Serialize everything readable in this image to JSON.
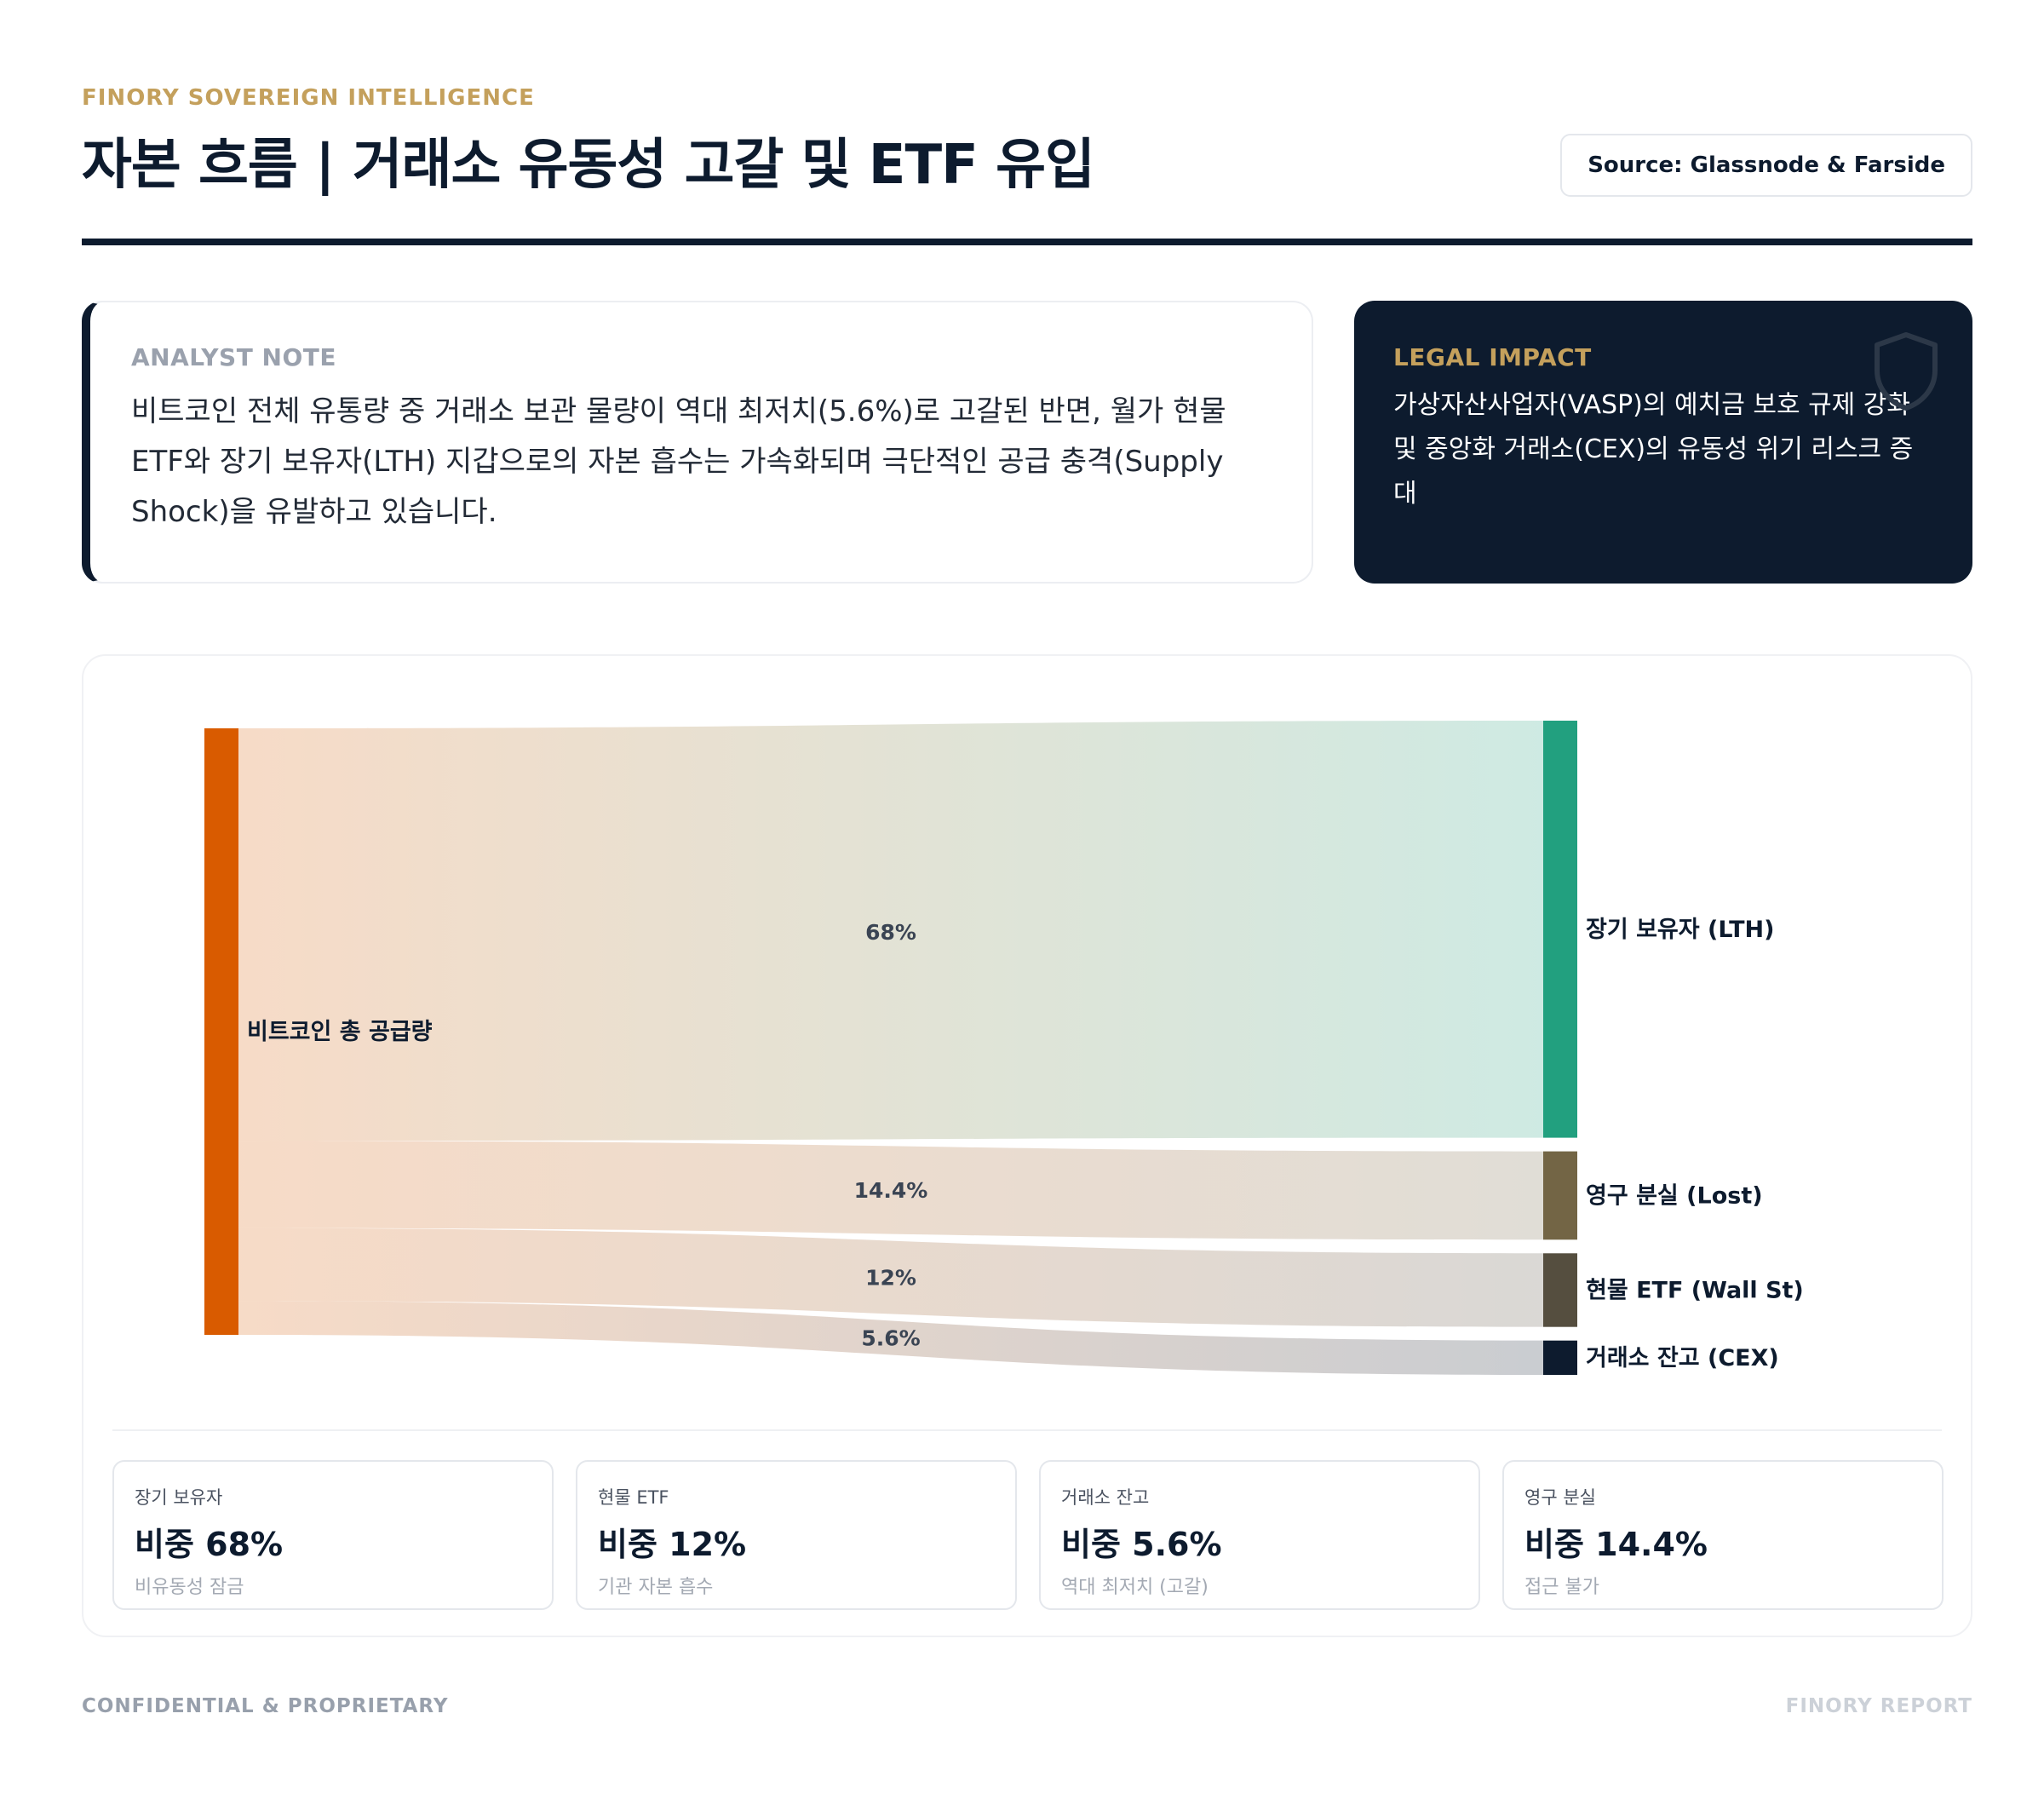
{
  "header": {
    "brand": "FINORY SOVEREIGN INTELLIGENCE",
    "title": "자본 흐름 | 거래소 유동성 고갈 및 ETF 유입",
    "source": "Source: Glassnode & Farside"
  },
  "analyst_note": {
    "heading": "ANALYST NOTE",
    "body": "비트코인 전체 유통량 중 거래소 보관 물량이 역대 최저치(5.6%)로 고갈된 반면, 월가 현물 ETF와 장기 보유자(LTH) 지갑으로의 자본 흡수는 가속화되며 극단적인 공급 충격(Supply Shock)을 유발하고 있습니다."
  },
  "legal_impact": {
    "heading": "LEGAL IMPACT",
    "body": "가상자산사업자(VASP)의 예치금 보호 규제 강화 및 중앙화 거래소(CEX)의 유동성 위기 리스크 증대",
    "icon": "shield-icon"
  },
  "chart_data": {
    "type": "sankey",
    "source": {
      "name": "비트코인 총 공급량",
      "color": "#d95b00"
    },
    "flows": [
      {
        "target": "장기 보유자 (LTH)",
        "value": 68,
        "label": "68%",
        "color": "#22a07f"
      },
      {
        "target": "영구 분실 (Lost)",
        "value": 14.4,
        "label": "14.4%",
        "color": "#736545"
      },
      {
        "target": "현물 ETF (Wall St)",
        "value": 12,
        "label": "12%",
        "color": "#554e3f"
      },
      {
        "target": "거래소 잔고 (CEX)",
        "value": 5.6,
        "label": "5.6%",
        "color": "#0d1b2e"
      }
    ]
  },
  "stats": [
    {
      "label": "장기 보유자",
      "value": "비중 68%",
      "sub": "비유동성 잠금"
    },
    {
      "label": "현물 ETF",
      "value": "비중 12%",
      "sub": "기관 자본 흡수"
    },
    {
      "label": "거래소 잔고",
      "value": "비중 5.6%",
      "sub": "역대 최저치 (고갈)"
    },
    {
      "label": "영구 분실",
      "value": "비중 14.4%",
      "sub": "접근 불가"
    }
  ],
  "footer": {
    "left": "CONFIDENTIAL & PROPRIETARY",
    "right": "FINORY REPORT"
  }
}
